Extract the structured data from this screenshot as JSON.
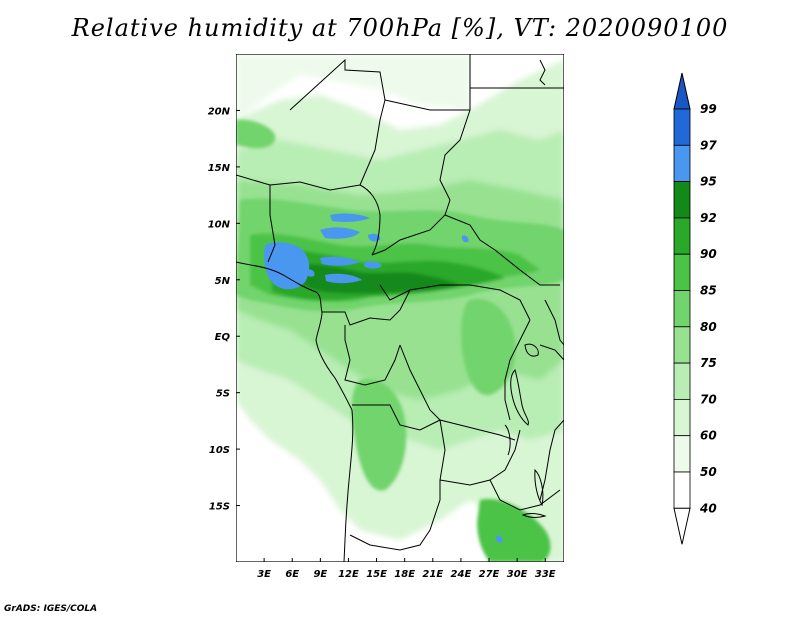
{
  "title": "Relative humidity at 700hPa [%], VT: 2020090100",
  "credit": "GrADS: IGES/COLA",
  "colors": {
    "bg": "#ffffff",
    "border": "#000000",
    "levels": [
      "#ffffff",
      "#eefbec",
      "#d8f5d4",
      "#b8edb3",
      "#97e191",
      "#72d46c",
      "#4cc346",
      "#2aa82a",
      "#13891a",
      "#4a97ef",
      "#2169d9",
      "#1a57c4"
    ]
  },
  "map": {
    "lon_range": [
      0,
      35
    ],
    "lat_range": [
      -20,
      25
    ],
    "x_ticks": [
      "3E",
      "6E",
      "9E",
      "12E",
      "15E",
      "18E",
      "21E",
      "24E",
      "27E",
      "30E",
      "33E"
    ],
    "y_ticks": [
      "20N",
      "15N",
      "10N",
      "5N",
      "EQ",
      "5S",
      "10S",
      "15S"
    ]
  },
  "colorbar": {
    "levels": [
      "99",
      "97",
      "95",
      "92",
      "90",
      "85",
      "80",
      "75",
      "70",
      "60",
      "50",
      "40"
    ]
  }
}
